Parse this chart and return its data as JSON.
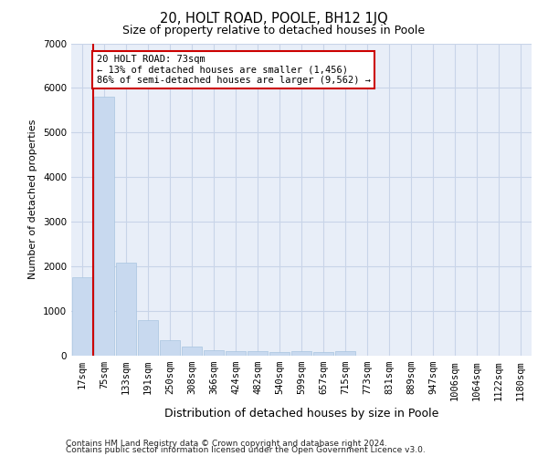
{
  "title": "20, HOLT ROAD, POOLE, BH12 1JQ",
  "subtitle": "Size of property relative to detached houses in Poole",
  "xlabel": "Distribution of detached houses by size in Poole",
  "ylabel": "Number of detached properties",
  "footnote1": "Contains HM Land Registry data © Crown copyright and database right 2024.",
  "footnote2": "Contains public sector information licensed under the Open Government Licence v3.0.",
  "annotation_line1": "20 HOLT ROAD: 73sqm",
  "annotation_line2": "← 13% of detached houses are smaller (1,456)",
  "annotation_line3": "86% of semi-detached houses are larger (9,562) →",
  "bar_color": "#c8d9ef",
  "bar_edge_color": "#a8c4e0",
  "grid_color": "#c8d4e8",
  "bg_color": "#e8eef8",
  "property_line_color": "#cc0000",
  "annotation_box_edge_color": "#cc0000",
  "annotation_box_face_color": "#ffffff",
  "categories": [
    "17sqm",
    "75sqm",
    "133sqm",
    "191sqm",
    "250sqm",
    "308sqm",
    "366sqm",
    "424sqm",
    "482sqm",
    "540sqm",
    "599sqm",
    "657sqm",
    "715sqm",
    "773sqm",
    "831sqm",
    "889sqm",
    "947sqm",
    "1006sqm",
    "1064sqm",
    "1122sqm",
    "1180sqm"
  ],
  "values": [
    1760,
    5800,
    2080,
    800,
    350,
    200,
    120,
    110,
    100,
    80,
    100,
    80,
    100,
    0,
    0,
    0,
    0,
    0,
    0,
    0,
    0
  ],
  "ylim": [
    0,
    7000
  ],
  "yticks": [
    0,
    1000,
    2000,
    3000,
    4000,
    5000,
    6000,
    7000
  ],
  "property_line_x": 0.5,
  "figsize": [
    6.0,
    5.0
  ],
  "dpi": 100,
  "title_fontsize": 10.5,
  "subtitle_fontsize": 9,
  "xlabel_fontsize": 9,
  "ylabel_fontsize": 8,
  "tick_fontsize": 7.5,
  "annotation_fontsize": 7.5,
  "footnote_fontsize": 6.5
}
